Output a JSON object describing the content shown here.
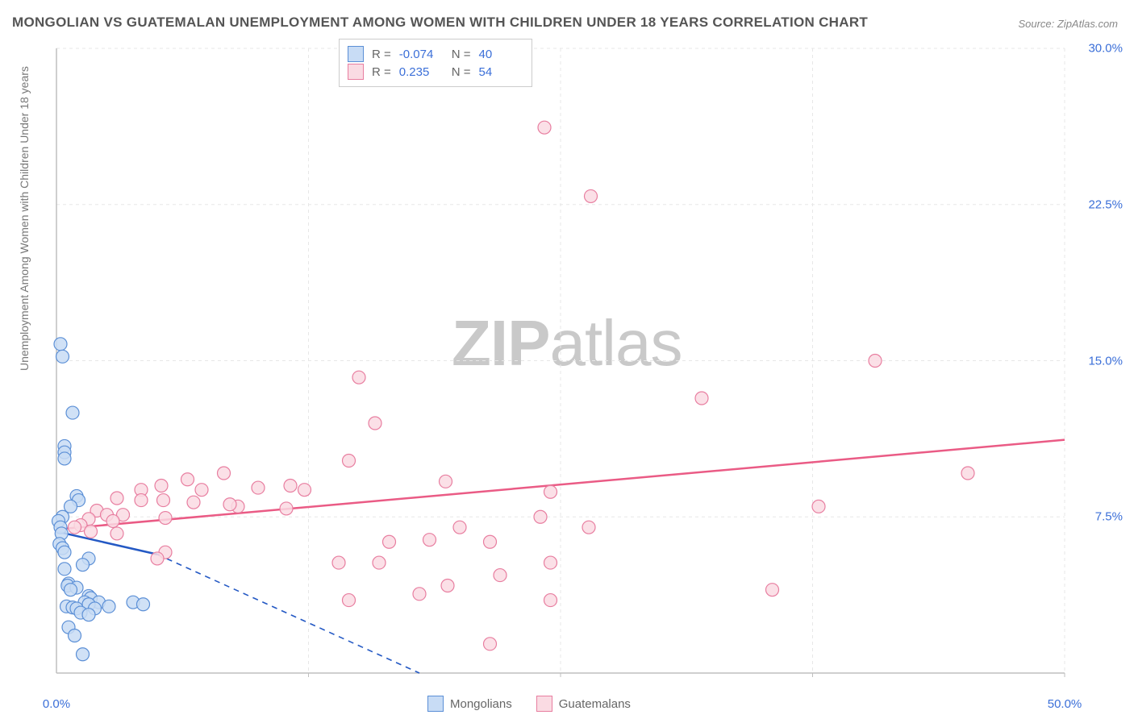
{
  "title": "MONGOLIAN VS GUATEMALAN UNEMPLOYMENT AMONG WOMEN WITH CHILDREN UNDER 18 YEARS CORRELATION CHART",
  "source": "Source: ZipAtlas.com",
  "y_axis_title": "Unemployment Among Women with Children Under 18 years",
  "watermark": {
    "bold": "ZIP",
    "light": "atlas"
  },
  "chart": {
    "type": "scatter",
    "xlim": [
      0,
      50
    ],
    "ylim": [
      0,
      30
    ],
    "background_color": "#ffffff",
    "grid_color": "#e7e7e7",
    "axis_line_color": "#bfbfbf",
    "x_grid_at": [
      0,
      12.5,
      25,
      37.5,
      50
    ],
    "y_grid_at": [
      0,
      7.5,
      15,
      22.5,
      30
    ],
    "x_tick_labels": [
      "0.0%",
      "50.0%"
    ],
    "x_tick_at": [
      0,
      50
    ],
    "y_tick_labels": [
      "7.5%",
      "15.0%",
      "22.5%",
      "30.0%"
    ],
    "y_tick_at": [
      7.5,
      15,
      22.5,
      30
    ],
    "marker_radius": 8,
    "marker_stroke_width": 1.2,
    "trend_line_width": 2.5,
    "trend_dash_width": 1.6,
    "series": {
      "mongolians": {
        "label": "Mongolians",
        "fill": "#c8dcf5",
        "stroke": "#5b8fd6",
        "line_color": "#2459c4",
        "R": "-0.074",
        "N": "40",
        "trend": {
          "x1": 0,
          "y1": 6.8,
          "x2": 5,
          "y2": 5.7
        },
        "trend_dash": {
          "x1": 5,
          "y1": 5.7,
          "x2": 18,
          "y2": 0
        },
        "points": [
          [
            0.2,
            15.8
          ],
          [
            0.3,
            15.2
          ],
          [
            0.8,
            12.5
          ],
          [
            0.4,
            10.9
          ],
          [
            0.4,
            10.6
          ],
          [
            0.4,
            10.3
          ],
          [
            1.0,
            8.5
          ],
          [
            1.1,
            8.3
          ],
          [
            0.7,
            8.0
          ],
          [
            0.3,
            7.5
          ],
          [
            0.1,
            7.3
          ],
          [
            0.2,
            7.0
          ],
          [
            0.25,
            6.7
          ],
          [
            0.15,
            6.2
          ],
          [
            0.3,
            6.0
          ],
          [
            0.4,
            5.8
          ],
          [
            1.6,
            5.5
          ],
          [
            1.3,
            5.2
          ],
          [
            0.4,
            5.0
          ],
          [
            0.6,
            4.3
          ],
          [
            0.55,
            4.2
          ],
          [
            1.0,
            4.1
          ],
          [
            0.7,
            4.0
          ],
          [
            1.6,
            3.7
          ],
          [
            1.7,
            3.6
          ],
          [
            1.4,
            3.4
          ],
          [
            2.1,
            3.4
          ],
          [
            1.6,
            3.3
          ],
          [
            0.5,
            3.2
          ],
          [
            0.8,
            3.15
          ],
          [
            1.0,
            3.1
          ],
          [
            1.9,
            3.1
          ],
          [
            2.6,
            3.2
          ],
          [
            3.8,
            3.4
          ],
          [
            4.3,
            3.3
          ],
          [
            1.2,
            2.9
          ],
          [
            1.6,
            2.8
          ],
          [
            0.6,
            2.2
          ],
          [
            0.9,
            1.8
          ],
          [
            1.3,
            0.9
          ]
        ]
      },
      "guatemalans": {
        "label": "Guatemalans",
        "fill": "#fadbe3",
        "stroke": "#e87ea0",
        "line_color": "#ea5b85",
        "R": "0.235",
        "N": "54",
        "trend": {
          "x1": 0,
          "y1": 6.9,
          "x2": 50,
          "y2": 11.2
        },
        "points": [
          [
            24.2,
            26.2
          ],
          [
            26.5,
            22.9
          ],
          [
            40.6,
            15.0
          ],
          [
            32.0,
            13.2
          ],
          [
            15.0,
            14.2
          ],
          [
            15.8,
            12.0
          ],
          [
            14.5,
            10.2
          ],
          [
            8.3,
            9.6
          ],
          [
            9.0,
            8.0
          ],
          [
            4.2,
            8.8
          ],
          [
            5.2,
            9.0
          ],
          [
            6.5,
            9.3
          ],
          [
            7.2,
            8.8
          ],
          [
            10.0,
            8.9
          ],
          [
            11.6,
            9.0
          ],
          [
            12.3,
            8.8
          ],
          [
            19.3,
            9.2
          ],
          [
            45.2,
            9.6
          ],
          [
            3.0,
            8.4
          ],
          [
            4.2,
            8.3
          ],
          [
            5.3,
            8.3
          ],
          [
            6.8,
            8.2
          ],
          [
            8.6,
            8.1
          ],
          [
            11.4,
            7.9
          ],
          [
            2.0,
            7.8
          ],
          [
            2.5,
            7.6
          ],
          [
            3.3,
            7.6
          ],
          [
            5.4,
            7.45
          ],
          [
            2.8,
            7.3
          ],
          [
            1.6,
            7.4
          ],
          [
            1.2,
            7.1
          ],
          [
            1.7,
            6.8
          ],
          [
            0.9,
            7.0
          ],
          [
            3.0,
            6.7
          ],
          [
            24.5,
            8.7
          ],
          [
            26.4,
            7.0
          ],
          [
            24.0,
            7.5
          ],
          [
            20.0,
            7.0
          ],
          [
            21.5,
            6.3
          ],
          [
            18.5,
            6.4
          ],
          [
            16.5,
            6.3
          ],
          [
            19.4,
            4.2
          ],
          [
            18.0,
            3.8
          ],
          [
            16.0,
            5.3
          ],
          [
            14.0,
            5.3
          ],
          [
            14.5,
            3.5
          ],
          [
            24.5,
            3.5
          ],
          [
            24.5,
            5.3
          ],
          [
            22.0,
            4.7
          ],
          [
            21.5,
            1.4
          ],
          [
            35.5,
            4.0
          ],
          [
            37.8,
            8.0
          ],
          [
            5.4,
            5.8
          ],
          [
            5.0,
            5.5
          ]
        ]
      }
    }
  },
  "stats_legend_labels": {
    "R": "R =",
    "N": "N ="
  },
  "colors": {
    "title_text": "#555555",
    "source_text": "#888888",
    "axis_title_text": "#777777",
    "stat_value_text": "#3b6fd8",
    "tick_text": "#3b6fd8",
    "watermark": "#c9c9c9"
  },
  "typography": {
    "title_fontsize": 17,
    "tick_fontsize": 15,
    "axis_title_fontsize": 14,
    "watermark_fontsize": 80
  }
}
